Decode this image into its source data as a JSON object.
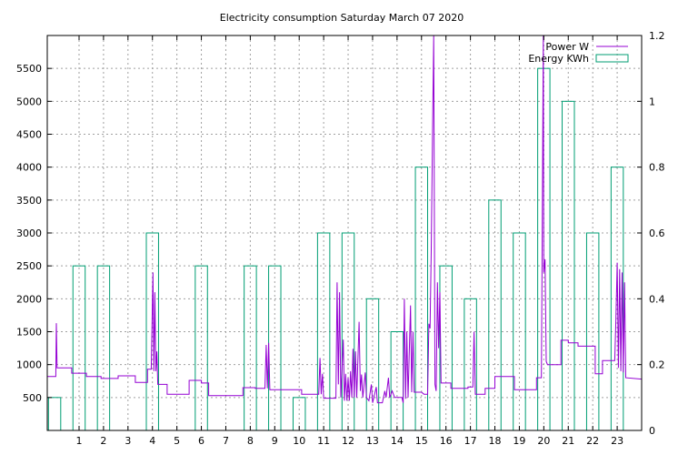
{
  "chart_data": {
    "type": "bar+line",
    "title": "Electricity consumption Saturday March 07 2020",
    "x_ticks": [
      "1",
      "2",
      "3",
      "4",
      "5",
      "6",
      "7",
      "8",
      "9",
      "10",
      "11",
      "12",
      "13",
      "14",
      "15",
      "16",
      "17",
      "18",
      "19",
      "20",
      "21",
      "22",
      "23"
    ],
    "xlim": [
      -0.3,
      24.0
    ],
    "ylim_left": [
      0,
      6000
    ],
    "ylim_right": [
      0,
      1.2
    ],
    "y_ticks_left": [
      "500",
      "1000",
      "1500",
      "2000",
      "2500",
      "3000",
      "3500",
      "4000",
      "4500",
      "5000",
      "5500"
    ],
    "y_ticks_right": [
      "0",
      "0.2",
      "0.4",
      "0.6",
      "0.8",
      "1",
      "1.2"
    ],
    "grid": true,
    "legend_position": "top-right",
    "colors": {
      "power": "#9400d3",
      "energy": "#009e73"
    },
    "series": [
      {
        "name": "Energy KWh",
        "kind": "bar",
        "hours": [
          0,
          1,
          2,
          4,
          6,
          8,
          9,
          10,
          11,
          12,
          13,
          14,
          15,
          16,
          17,
          18,
          19,
          20,
          21,
          22,
          23
        ],
        "values": [
          0.1,
          0.5,
          0.5,
          0.6,
          0.5,
          0.5,
          0.5,
          0.1,
          0.6,
          0.6,
          0.4,
          0.3,
          0.8,
          0.5,
          0.4,
          0.7,
          0.6,
          1.1,
          1.0,
          0.6,
          0.8
        ]
      },
      {
        "name": "Power W",
        "kind": "line",
        "points": [
          [
            -0.3,
            820
          ],
          [
            0.05,
            820
          ],
          [
            0.07,
            1630
          ],
          [
            0.1,
            950
          ],
          [
            0.7,
            950
          ],
          [
            0.7,
            870
          ],
          [
            1.3,
            870
          ],
          [
            1.3,
            820
          ],
          [
            1.9,
            820
          ],
          [
            1.9,
            790
          ],
          [
            2.6,
            790
          ],
          [
            2.6,
            830
          ],
          [
            3.3,
            830
          ],
          [
            3.3,
            730
          ],
          [
            3.8,
            730
          ],
          [
            3.8,
            930
          ],
          [
            3.95,
            930
          ],
          [
            4.02,
            2400
          ],
          [
            4.06,
            900
          ],
          [
            4.1,
            2100
          ],
          [
            4.14,
            900
          ],
          [
            4.18,
            1200
          ],
          [
            4.22,
            700
          ],
          [
            4.6,
            700
          ],
          [
            4.6,
            550
          ],
          [
            5.5,
            550
          ],
          [
            5.5,
            760
          ],
          [
            6.0,
            760
          ],
          [
            6.0,
            720
          ],
          [
            6.3,
            720
          ],
          [
            6.3,
            530
          ],
          [
            7.7,
            530
          ],
          [
            7.7,
            650
          ],
          [
            8.2,
            650
          ],
          [
            8.2,
            640
          ],
          [
            8.6,
            640
          ],
          [
            8.65,
            1300
          ],
          [
            8.7,
            640
          ],
          [
            8.75,
            1330
          ],
          [
            8.8,
            620
          ],
          [
            10.1,
            620
          ],
          [
            10.1,
            550
          ],
          [
            10.8,
            550
          ],
          [
            10.85,
            1100
          ],
          [
            10.9,
            550
          ],
          [
            10.95,
            860
          ],
          [
            11.0,
            490
          ],
          [
            11.5,
            490
          ],
          [
            11.55,
            2250
          ],
          [
            11.6,
            700
          ],
          [
            11.65,
            2100
          ],
          [
            11.7,
            500
          ],
          [
            11.8,
            1380
          ],
          [
            11.85,
            450
          ],
          [
            11.9,
            860
          ],
          [
            11.95,
            450
          ],
          [
            12.0,
            800
          ],
          [
            12.05,
            450
          ],
          [
            12.1,
            900
          ],
          [
            12.15,
            500
          ],
          [
            12.2,
            1240
          ],
          [
            12.25,
            500
          ],
          [
            12.3,
            1200
          ],
          [
            12.35,
            500
          ],
          [
            12.45,
            1650
          ],
          [
            12.5,
            600
          ],
          [
            12.55,
            850
          ],
          [
            12.6,
            500
          ],
          [
            12.7,
            880
          ],
          [
            12.75,
            500
          ],
          [
            12.85,
            450
          ],
          [
            12.95,
            700
          ],
          [
            13.0,
            420
          ],
          [
            13.15,
            660
          ],
          [
            13.2,
            420
          ],
          [
            13.4,
            420
          ],
          [
            13.5,
            600
          ],
          [
            13.55,
            500
          ],
          [
            13.65,
            800
          ],
          [
            13.7,
            500
          ],
          [
            13.8,
            600
          ],
          [
            13.9,
            500
          ],
          [
            14.2,
            500
          ],
          [
            14.25,
            420
          ],
          [
            14.3,
            2000
          ],
          [
            14.35,
            480
          ],
          [
            14.4,
            1500
          ],
          [
            14.45,
            500
          ],
          [
            14.55,
            1900
          ],
          [
            14.6,
            580
          ],
          [
            14.65,
            1500
          ],
          [
            14.7,
            580
          ],
          [
            15.0,
            580
          ],
          [
            15.1,
            550
          ],
          [
            15.25,
            550
          ],
          [
            15.3,
            1620
          ],
          [
            15.35,
            1550
          ],
          [
            15.4,
            2750
          ],
          [
            15.45,
            4500
          ],
          [
            15.5,
            6000
          ],
          [
            15.55,
            700
          ],
          [
            15.6,
            600
          ],
          [
            15.65,
            2250
          ],
          [
            15.7,
            1250
          ],
          [
            15.75,
            2100
          ],
          [
            15.8,
            720
          ],
          [
            16.2,
            720
          ],
          [
            16.2,
            640
          ],
          [
            16.9,
            640
          ],
          [
            16.9,
            660
          ],
          [
            17.1,
            660
          ],
          [
            17.15,
            1500
          ],
          [
            17.2,
            550
          ],
          [
            17.6,
            550
          ],
          [
            17.6,
            640
          ],
          [
            18.0,
            640
          ],
          [
            18.0,
            820
          ],
          [
            18.8,
            820
          ],
          [
            18.8,
            620
          ],
          [
            19.7,
            620
          ],
          [
            19.7,
            800
          ],
          [
            19.9,
            800
          ],
          [
            19.95,
            4000
          ],
          [
            19.98,
            6000
          ],
          [
            20.0,
            2400
          ],
          [
            20.05,
            2600
          ],
          [
            20.1,
            1050
          ],
          [
            20.15,
            1000
          ],
          [
            20.7,
            1000
          ],
          [
            20.7,
            1370
          ],
          [
            21.0,
            1370
          ],
          [
            21.0,
            1330
          ],
          [
            21.4,
            1330
          ],
          [
            21.4,
            1280
          ],
          [
            22.1,
            1280
          ],
          [
            22.1,
            860
          ],
          [
            22.4,
            860
          ],
          [
            22.4,
            1060
          ],
          [
            22.9,
            1060
          ],
          [
            22.95,
            1700
          ],
          [
            23.0,
            2550
          ],
          [
            23.05,
            950
          ],
          [
            23.1,
            2450
          ],
          [
            23.15,
            900
          ],
          [
            23.2,
            2400
          ],
          [
            23.25,
            880
          ],
          [
            23.3,
            2250
          ],
          [
            23.35,
            800
          ],
          [
            24.0,
            780
          ]
        ]
      }
    ]
  }
}
